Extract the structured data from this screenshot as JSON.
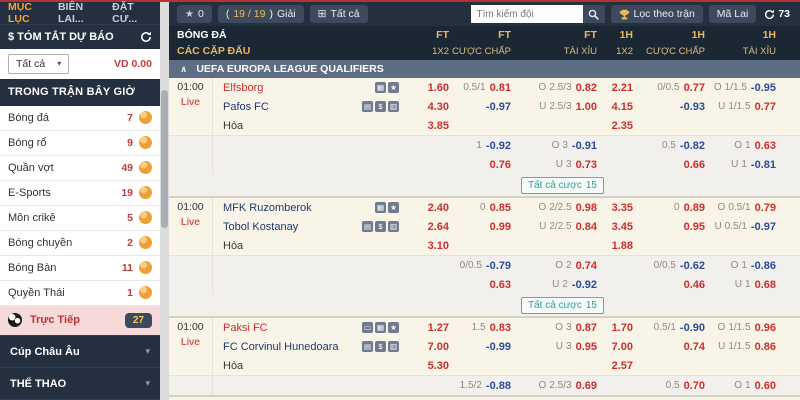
{
  "colors": {
    "accent_red": "#cf2e2c",
    "odds_blue": "#2a4b9b",
    "gold": "#e9b95f",
    "teal": "#2aa394",
    "orange": "#ef9f36",
    "navy": "#242f3f",
    "live_pink": "#f6d9d9"
  },
  "icon_glyphs": {
    "stats": "▦",
    "star": "★",
    "book": "▤",
    "money": "$",
    "tools": "▥",
    "card": "▭",
    "expand": "⊞",
    "caret": "▾",
    "collapse": "∧"
  },
  "sidebar": {
    "tabs": [
      {
        "label": "MỤC LỤC"
      },
      {
        "label": "BIÊN LAI..."
      },
      {
        "label": "ĐẶT CƯ..."
      }
    ],
    "forecast_title": "$ TÓM TẮT DỰ BÁO",
    "filter_value": "Tất cả",
    "balance": "VD 0.00",
    "section_title": "TRONG TRẬN BÂY GIỜ",
    "sports": [
      {
        "label": "Bóng đá",
        "count": "7",
        "icon": "soccer"
      },
      {
        "label": "Bóng rổ",
        "count": "9",
        "icon": "basketball"
      },
      {
        "label": "Quần vợt",
        "count": "49",
        "icon": "tennis"
      },
      {
        "label": "E-Sports",
        "count": "19",
        "icon": "esports"
      },
      {
        "label": "Môn crikê",
        "count": "5",
        "icon": "cricket"
      },
      {
        "label": "Bóng chuyền",
        "count": "2",
        "icon": "volleyball"
      },
      {
        "label": "Bóng Bàn",
        "count": "11",
        "icon": "tabletennis"
      },
      {
        "label": "Quyền Thái",
        "count": "1",
        "icon": "boxing"
      }
    ],
    "live_row": {
      "label": "Trực Tiếp",
      "count": "27"
    },
    "collapsed_sections": [
      {
        "label": "Cúp Châu Âu"
      },
      {
        "label": "THỂ THAO"
      }
    ]
  },
  "toolbar": {
    "star_count": "0",
    "leagues": {
      "prefix": "(",
      "count": "19 / 19",
      "suffix": ")",
      "label": "Giải"
    },
    "all_label": "Tất cả",
    "search_placeholder": "Tìm kiếm đội",
    "filter_button": "Lọc theo trận",
    "language_button": "Mã Lai",
    "refresh_count": "73"
  },
  "table": {
    "sport": "BÓNG ĐÁ",
    "pairs": "CÁC CẶP ĐẤU",
    "columns": [
      {
        "period": "FT",
        "market": "1X2"
      },
      {
        "period": "FT",
        "market": "CƯỢC CHẤP"
      },
      {
        "period": "FT",
        "market": "TÀI XỈU"
      },
      {
        "period": "1H",
        "market": "1X2"
      },
      {
        "period": "1H",
        "market": "CƯỢC CHẤP"
      },
      {
        "period": "1H",
        "market": "TÀI XỈU"
      }
    ],
    "league": "UEFA EUROPA LEAGUE QUALIFIERS"
  },
  "matches": [
    {
      "time": "01:00",
      "live_label": "Live",
      "teams": [
        {
          "name": "Elfsborg",
          "color": "red"
        },
        {
          "name": "Pafos FC",
          "color": "blue"
        },
        {
          "name": "Hòa",
          "color": "draw"
        }
      ],
      "icons_row1": [
        "stats",
        "star"
      ],
      "icons_row2": [
        "book",
        "money",
        "tools"
      ],
      "main_rows": [
        {
          "ft_1x2": "1.60",
          "ft_hdp": [
            "0.5/1",
            "0.81"
          ],
          "ft_ou": [
            "O",
            "2.5/3",
            "0.82"
          ],
          "h_1x2": "2.21",
          "h_hdp": [
            "0/0.5",
            "0.77"
          ],
          "h_ou": [
            "O",
            "1/1.5",
            "-0.95"
          ]
        },
        {
          "ft_1x2": "4.30",
          "ft_hdp": [
            "",
            "-0.97"
          ],
          "ft_ou": [
            "U",
            "2.5/3",
            "1.00"
          ],
          "h_1x2": "4.15",
          "h_hdp": [
            "",
            "-0.93"
          ],
          "h_ou": [
            "U",
            "1/1.5",
            "0.77"
          ]
        },
        {
          "ft_1x2": "3.85",
          "h_1x2": "2.35"
        }
      ],
      "sub_rows": [
        {
          "ft_hdp": [
            "1",
            "-0.92"
          ],
          "ft_ou": [
            "O",
            "3",
            "-0.91"
          ],
          "h_hdp": [
            "0.5",
            "-0.82"
          ],
          "h_ou": [
            "O",
            "1",
            "0.63"
          ]
        },
        {
          "ft_hdp": [
            "",
            "0.76"
          ],
          "ft_ou": [
            "U",
            "3",
            "0.73"
          ],
          "h_hdp": [
            "",
            "0.66"
          ],
          "h_ou": [
            "U",
            "1",
            "-0.81"
          ]
        }
      ],
      "all_bets_label": "Tất cả cược",
      "all_bets_count": "15"
    },
    {
      "time": "01:00",
      "live_label": "Live",
      "teams": [
        {
          "name": "MFK Ruzomberok",
          "color": "blue"
        },
        {
          "name": "Tobol Kostanay",
          "color": "blue"
        },
        {
          "name": "Hòa",
          "color": "draw"
        }
      ],
      "icons_row1": [
        "stats",
        "star"
      ],
      "icons_row2": [
        "book",
        "money",
        "tools"
      ],
      "main_rows": [
        {
          "ft_1x2": "2.40",
          "ft_hdp": [
            "0",
            "0.85"
          ],
          "ft_ou": [
            "O",
            "2/2.5",
            "0.98"
          ],
          "h_1x2": "3.35",
          "h_hdp": [
            "0",
            "0.89"
          ],
          "h_ou": [
            "O",
            "0.5/1",
            "0.79"
          ]
        },
        {
          "ft_1x2": "2.64",
          "ft_hdp": [
            "",
            "0.99"
          ],
          "ft_ou": [
            "U",
            "2/2.5",
            "0.84"
          ],
          "h_1x2": "3.45",
          "h_hdp": [
            "",
            "0.95"
          ],
          "h_ou": [
            "U",
            "0.5/1",
            "-0.97"
          ]
        },
        {
          "ft_1x2": "3.10",
          "h_1x2": "1.88"
        }
      ],
      "sub_rows": [
        {
          "ft_hdp": [
            "0/0.5",
            "-0.79"
          ],
          "ft_ou": [
            "O",
            "2",
            "0.74"
          ],
          "h_hdp": [
            "0/0.5",
            "-0.62"
          ],
          "h_ou": [
            "O",
            "1",
            "-0.86"
          ]
        },
        {
          "ft_hdp": [
            "",
            "0.63"
          ],
          "ft_ou": [
            "U",
            "2",
            "-0.92"
          ],
          "h_hdp": [
            "",
            "0.46"
          ],
          "h_ou": [
            "U",
            "1",
            "0.68"
          ]
        }
      ],
      "all_bets_label": "Tất cả cược",
      "all_bets_count": "15"
    },
    {
      "time": "01:00",
      "live_label": "Live",
      "teams": [
        {
          "name": "Paksi FC",
          "color": "red"
        },
        {
          "name": "FC Corvinul Hunedoara",
          "color": "blue"
        },
        {
          "name": "Hòa",
          "color": "draw"
        }
      ],
      "icons_row1": [
        "card",
        "stats",
        "star"
      ],
      "icons_row2": [
        "book",
        "money",
        "tools"
      ],
      "main_rows": [
        {
          "ft_1x2": "1.27",
          "ft_hdp": [
            "1.5",
            "0.83"
          ],
          "ft_ou": [
            "O",
            "3",
            "0.87"
          ],
          "h_1x2": "1.70",
          "h_hdp": [
            "0.5/1",
            "-0.90"
          ],
          "h_ou": [
            "O",
            "1/1.5",
            "0.96"
          ]
        },
        {
          "ft_1x2": "7.00",
          "ft_hdp": [
            "",
            "-0.99"
          ],
          "ft_ou": [
            "U",
            "3",
            "0.95"
          ],
          "h_1x2": "7.00",
          "h_hdp": [
            "",
            "0.74"
          ],
          "h_ou": [
            "U",
            "1/1.5",
            "0.86"
          ]
        },
        {
          "ft_1x2": "5.30",
          "h_1x2": "2.57"
        }
      ],
      "sub_rows": [
        {
          "ft_hdp": [
            "1.5/2",
            "-0.88"
          ],
          "ft_ou": [
            "O",
            "2.5/3",
            "0.69"
          ],
          "h_hdp": [
            "0.5",
            "0.70"
          ],
          "h_ou": [
            "O",
            "1",
            "0.60"
          ]
        }
      ]
    }
  ]
}
